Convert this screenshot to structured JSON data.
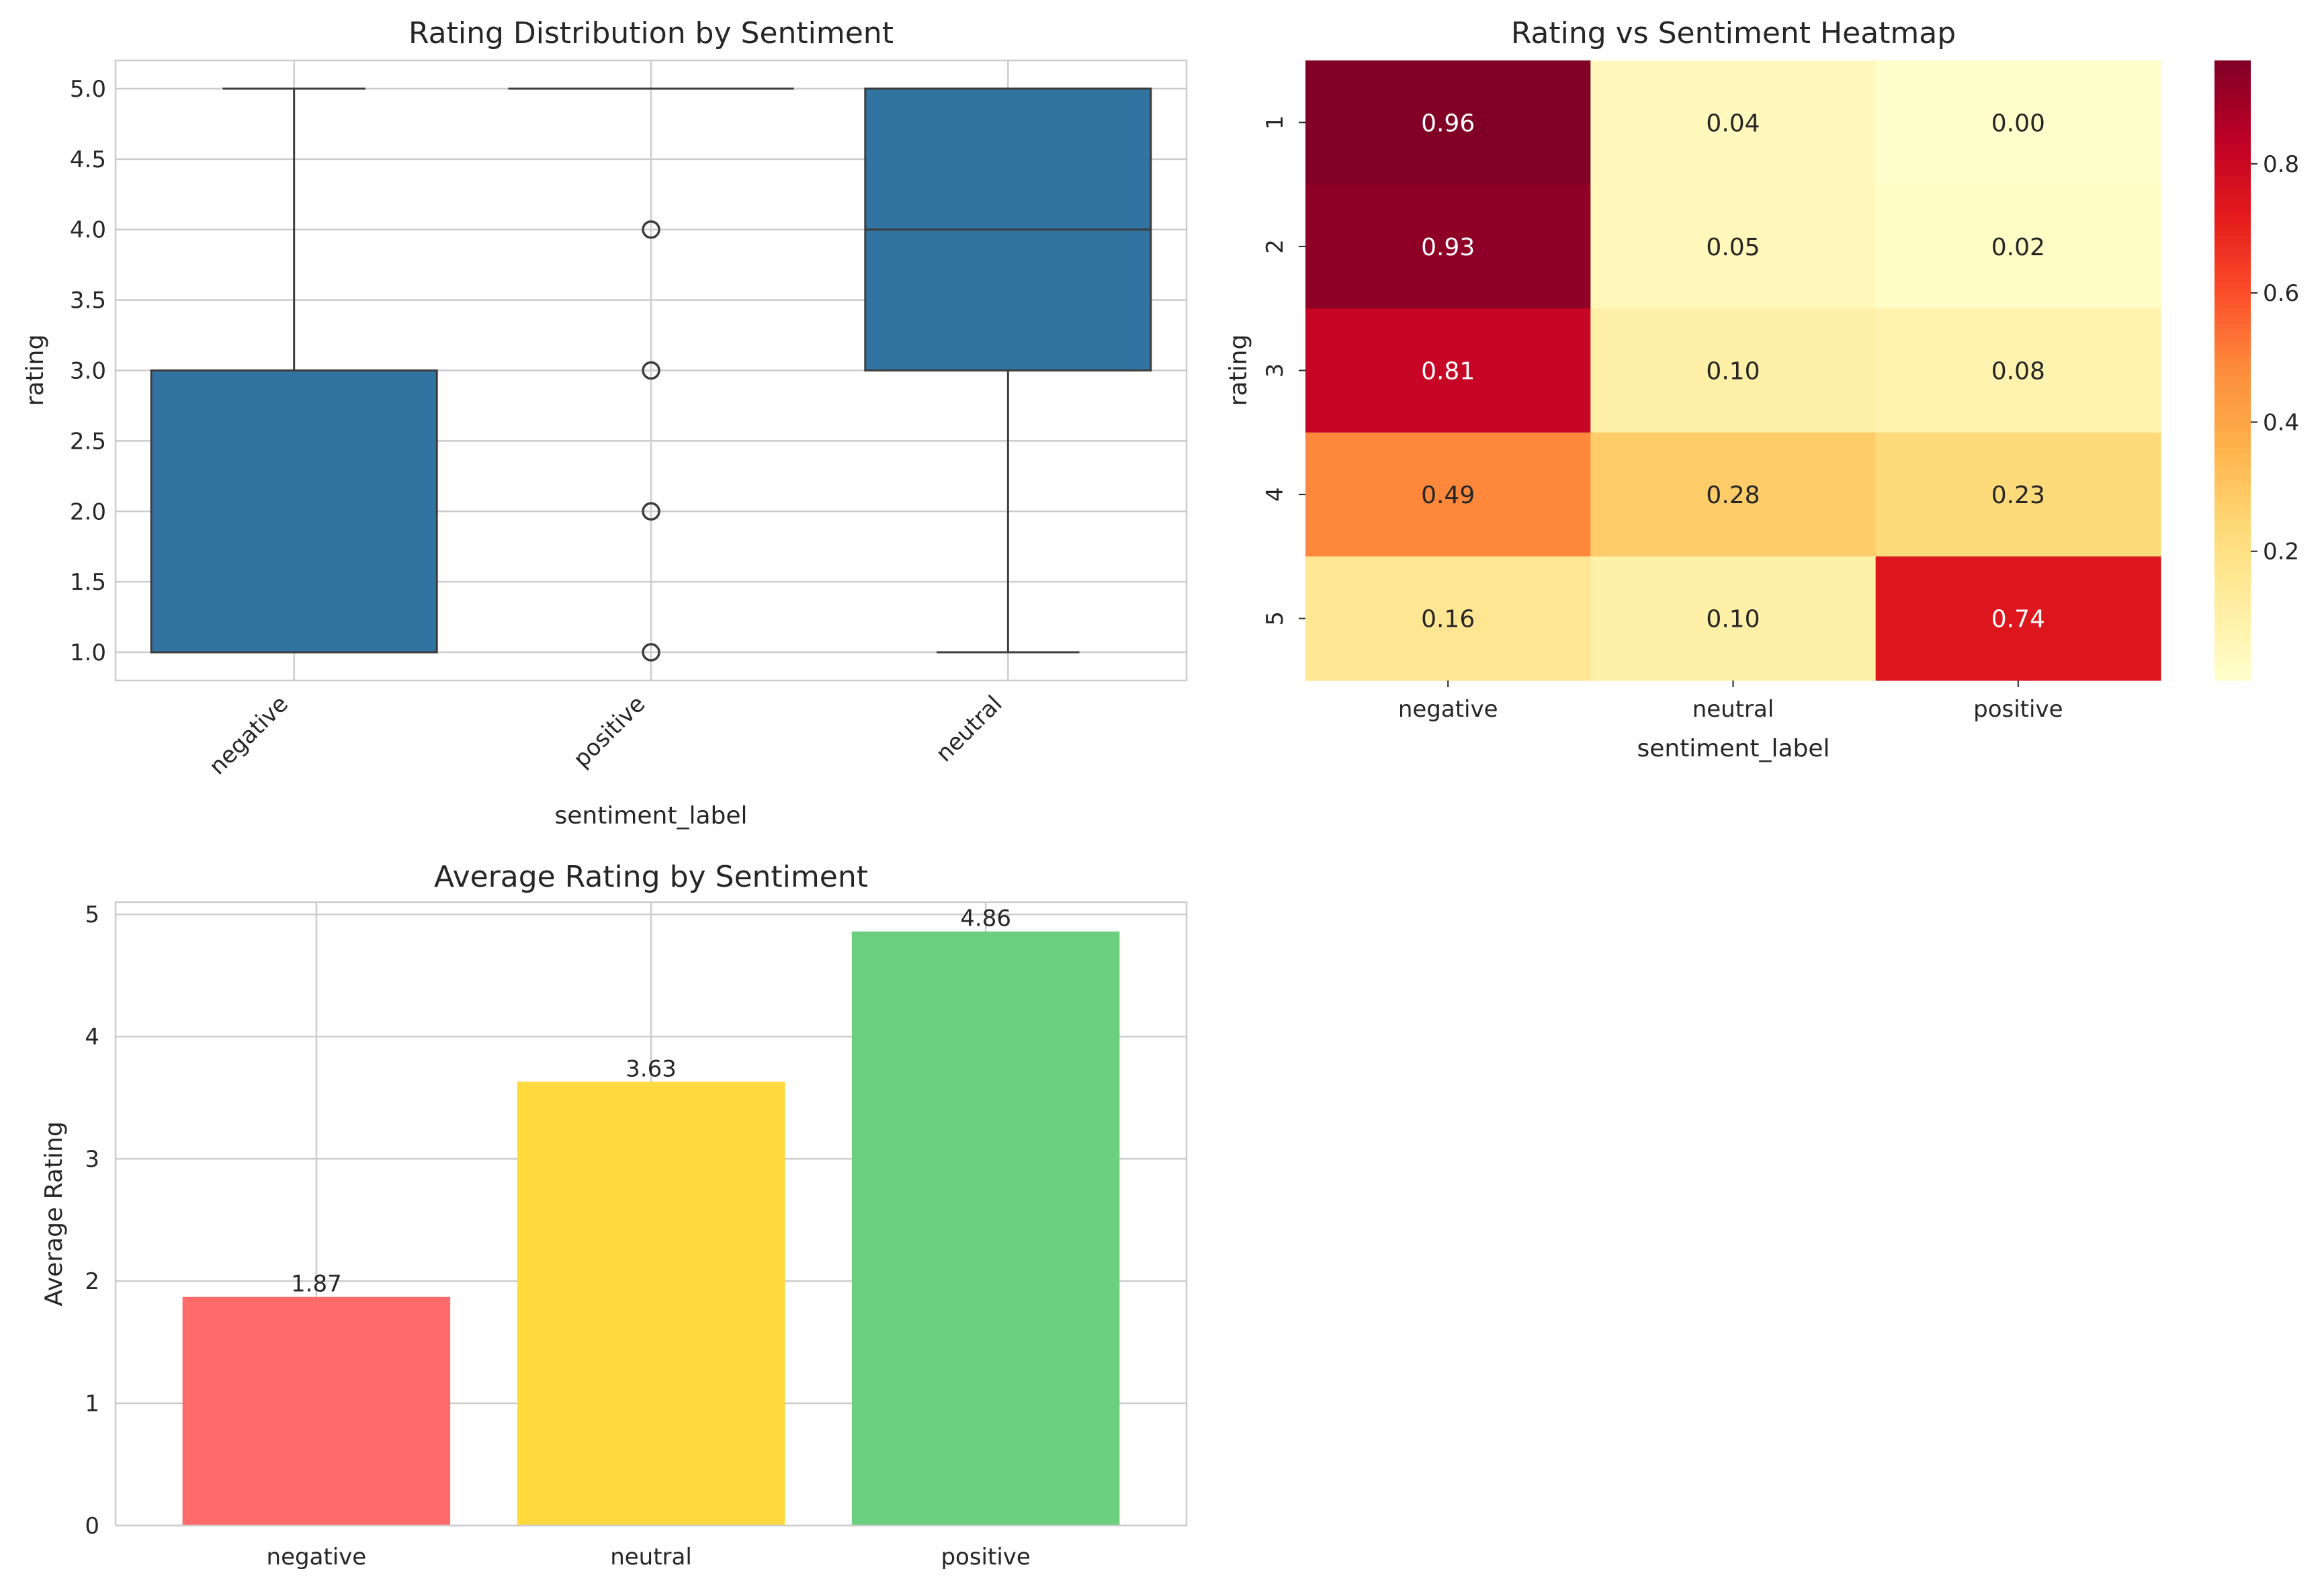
{
  "chart_data": [
    {
      "type": "box",
      "title": "Rating Distribution by Sentiment",
      "xlabel": "sentiment_label",
      "ylabel": "rating",
      "ylim": [
        0.8,
        5.2
      ],
      "yticks": [
        "1.0",
        "1.5",
        "2.0",
        "2.5",
        "3.0",
        "3.5",
        "4.0",
        "4.5",
        "5.0"
      ],
      "yticks_values": [
        1.0,
        1.5,
        2.0,
        2.5,
        3.0,
        3.5,
        4.0,
        4.5,
        5.0
      ],
      "categories": [
        "negative",
        "positive",
        "neutral"
      ],
      "boxes": [
        {
          "category": "negative",
          "whisker_low": 1,
          "q1": 1,
          "median": 1,
          "q3": 3,
          "whisker_high": 5,
          "outliers": []
        },
        {
          "category": "positive",
          "whisker_low": 5,
          "q1": 5,
          "median": 5,
          "q3": 5,
          "whisker_high": 5,
          "outliers": [
            4,
            3,
            2,
            1
          ]
        },
        {
          "category": "neutral",
          "whisker_low": 1,
          "q1": 3,
          "median": 4,
          "q3": 5,
          "whisker_high": 5,
          "outliers": []
        }
      ],
      "box_color": "#3274a1",
      "grid": true
    },
    {
      "type": "heatmap",
      "title": "Rating vs Sentiment Heatmap",
      "xlabel": "sentiment_label",
      "ylabel": "rating",
      "x_categories": [
        "negative",
        "neutral",
        "positive"
      ],
      "y_categories": [
        "1",
        "2",
        "3",
        "4",
        "5"
      ],
      "values": [
        [
          0.96,
          0.04,
          0.0
        ],
        [
          0.93,
          0.05,
          0.02
        ],
        [
          0.81,
          0.1,
          0.08
        ],
        [
          0.49,
          0.28,
          0.23
        ],
        [
          0.16,
          0.1,
          0.74
        ]
      ],
      "cell_labels": [
        [
          "0.96",
          "0.04",
          "0.00"
        ],
        [
          "0.93",
          "0.05",
          "0.02"
        ],
        [
          "0.81",
          "0.10",
          "0.08"
        ],
        [
          "0.49",
          "0.28",
          "0.23"
        ],
        [
          "0.16",
          "0.10",
          "0.74"
        ]
      ],
      "colormap": "YlOrRd",
      "colorbar_range": [
        0.0,
        0.96
      ],
      "colorbar_ticks": [
        "0.2",
        "0.4",
        "0.6",
        "0.8"
      ],
      "colorbar_ticks_values": [
        0.2,
        0.4,
        0.6,
        0.8
      ]
    },
    {
      "type": "bar",
      "title": "Average Rating by Sentiment",
      "xlabel": "",
      "ylabel": "Average Rating",
      "ylim": [
        0,
        5.1
      ],
      "yticks": [
        "0",
        "1",
        "2",
        "3",
        "4",
        "5"
      ],
      "yticks_values": [
        0,
        1,
        2,
        3,
        4,
        5
      ],
      "categories": [
        "negative",
        "neutral",
        "positive"
      ],
      "values": [
        1.87,
        3.63,
        4.86
      ],
      "value_labels": [
        "1.87",
        "3.63",
        "4.86"
      ],
      "colors": [
        "#ff6b6b",
        "#ffd93d",
        "#6bcf7f"
      ],
      "grid": true
    }
  ]
}
